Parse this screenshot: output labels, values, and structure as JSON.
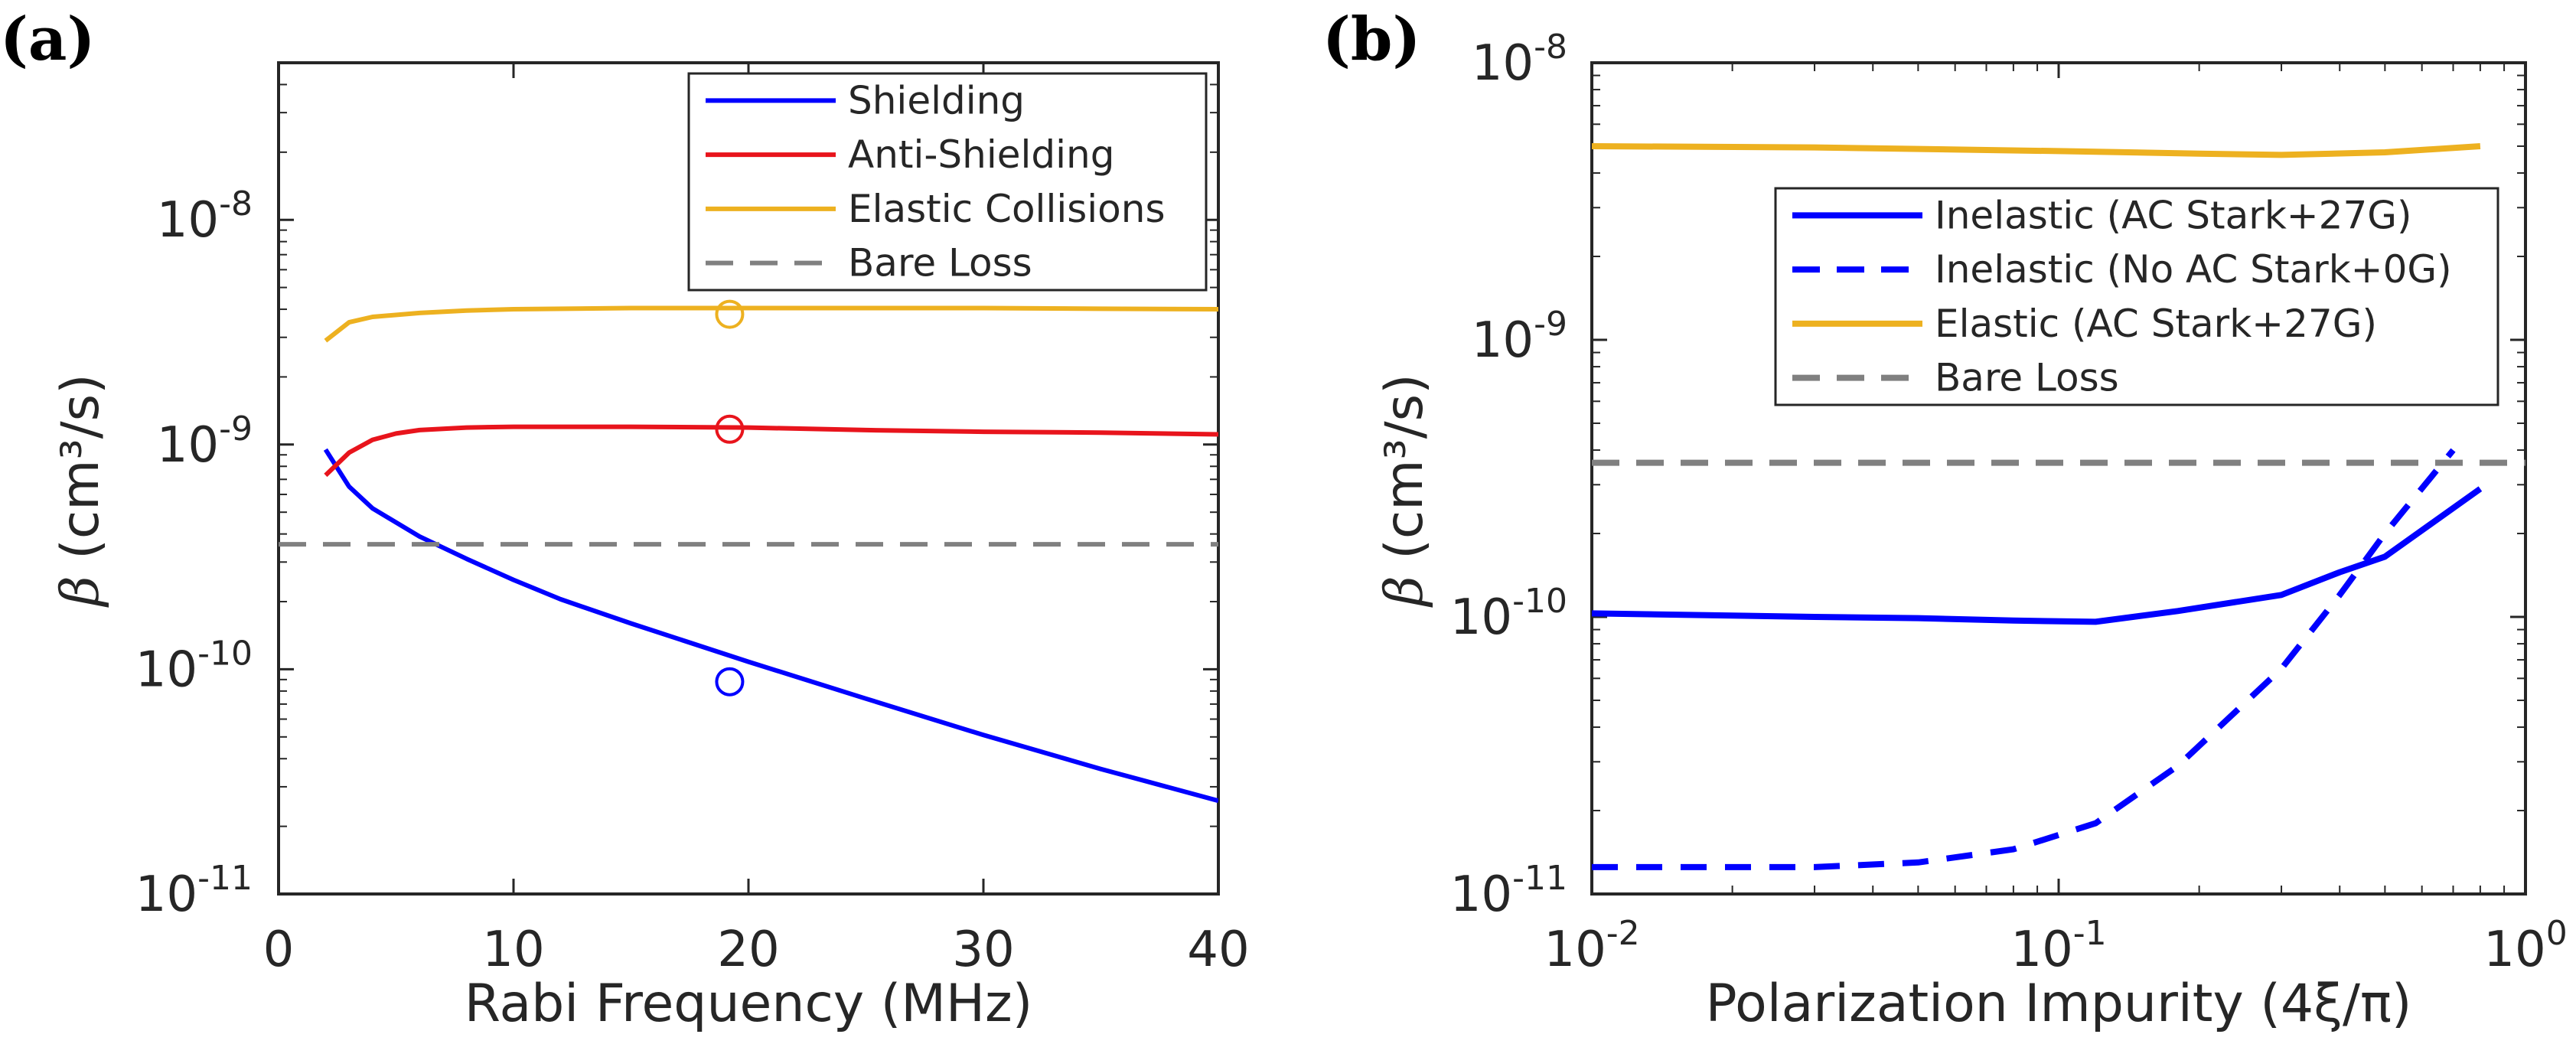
{
  "chart_data": [
    {
      "panel": "(a)",
      "type": "line",
      "title": "",
      "xlabel": "Rabi Frequency (MHz)",
      "ylabel": "(cm³/s)",
      "ylabel_symbol": "β",
      "xscale": "linear",
      "yscale": "log",
      "xlim": [
        0,
        40
      ],
      "ylim": [
        1e-11,
        5e-08
      ],
      "xticks": [
        {
          "value": 0,
          "label": "0"
        },
        {
          "value": 10,
          "label": "10"
        },
        {
          "value": 20,
          "label": "20"
        },
        {
          "value": 30,
          "label": "30"
        },
        {
          "value": 40,
          "label": "40"
        }
      ],
      "yticks": [
        {
          "value": 1e-11,
          "base": "10",
          "exp": "-11"
        },
        {
          "value": 1e-10,
          "base": "10",
          "exp": "-10"
        },
        {
          "value": 1e-09,
          "base": "10",
          "exp": "-9"
        },
        {
          "value": 1e-08,
          "base": "10",
          "exp": "-8"
        }
      ],
      "legend_position": "top-right",
      "series": [
        {
          "name": "Shielding",
          "color": "#0000ff",
          "dash": "solid",
          "x": [
            2,
            3,
            4,
            6,
            8,
            10,
            12,
            15,
            20,
            25,
            30,
            35,
            40
          ],
          "y": [
            9.5e-10,
            6.5e-10,
            5.2e-10,
            3.9e-10,
            3.1e-10,
            2.5e-10,
            2.05e-10,
            1.6e-10,
            1.08e-10,
            7.4e-11,
            5.1e-11,
            3.6e-11,
            2.6e-11
          ]
        },
        {
          "name": "Anti-Shielding",
          "color": "#e8141c",
          "dash": "solid",
          "x": [
            2,
            3,
            4,
            5,
            6,
            8,
            10,
            15,
            20,
            25,
            30,
            35,
            40
          ],
          "y": [
            7.3e-10,
            9.2e-10,
            1.05e-09,
            1.12e-09,
            1.16e-09,
            1.19e-09,
            1.2e-09,
            1.2e-09,
            1.19e-09,
            1.16e-09,
            1.14e-09,
            1.13e-09,
            1.11e-09
          ]
        },
        {
          "name": "Elastic Collisions",
          "color": "#edb120",
          "dash": "solid",
          "x": [
            2,
            3,
            4,
            6,
            8,
            10,
            15,
            20,
            25,
            30,
            35,
            40
          ],
          "y": [
            2.9e-09,
            3.5e-09,
            3.7e-09,
            3.85e-09,
            3.95e-09,
            4e-09,
            4.05e-09,
            4.05e-09,
            4.05e-09,
            4.05e-09,
            4.02e-09,
            4e-09
          ]
        },
        {
          "name": "Bare Loss",
          "color": "#808080",
          "dash": "dashed",
          "x": [
            0,
            40
          ],
          "y": [
            3.6e-10,
            3.6e-10
          ]
        }
      ],
      "points": [
        {
          "series": "Elastic Collisions",
          "x": 19.2,
          "y": 3.8e-09,
          "color": "#edb120"
        },
        {
          "series": "Anti-Shielding",
          "x": 19.2,
          "y": 1.17e-09,
          "color": "#e8141c"
        },
        {
          "series": "Shielding",
          "x": 19.2,
          "y": 8.8e-11,
          "color": "#0000ff"
        }
      ]
    },
    {
      "panel": "(b)",
      "type": "line",
      "title": "",
      "xlabel": "Polarization Impurity (4ξ/π)",
      "ylabel": "(cm³/s)",
      "ylabel_symbol": "β",
      "xscale": "log",
      "yscale": "log",
      "xlim": [
        0.01,
        1
      ],
      "ylim": [
        1e-11,
        1e-08
      ],
      "xticks": [
        {
          "value": 0.01,
          "base": "10",
          "exp": "-2"
        },
        {
          "value": 0.1,
          "base": "10",
          "exp": "-1"
        },
        {
          "value": 1,
          "base": "10",
          "exp": "0"
        }
      ],
      "yticks": [
        {
          "value": 1e-11,
          "base": "10",
          "exp": "-11"
        },
        {
          "value": 1e-10,
          "base": "10",
          "exp": "-10"
        },
        {
          "value": 1e-09,
          "base": "10",
          "exp": "-9"
        },
        {
          "value": 1e-08,
          "base": "10",
          "exp": "-8"
        }
      ],
      "legend_position": "right",
      "series": [
        {
          "name": "Inelastic (AC Stark+27G)",
          "color": "#0000ff",
          "dash": "solid",
          "x": [
            0.01,
            0.03,
            0.05,
            0.08,
            0.12,
            0.18,
            0.3,
            0.4,
            0.5,
            0.8
          ],
          "y": [
            1.03e-10,
            1e-10,
            9.9e-11,
            9.7e-11,
            9.6e-11,
            1.05e-10,
            1.2e-10,
            1.45e-10,
            1.65e-10,
            2.9e-10
          ]
        },
        {
          "name": "Inelastic (No AC Stark+0G)",
          "color": "#0000ff",
          "dash": "dashed",
          "x": [
            0.01,
            0.03,
            0.05,
            0.08,
            0.12,
            0.18,
            0.3,
            0.4,
            0.5,
            0.7
          ],
          "y": [
            1.25e-11,
            1.25e-11,
            1.3e-11,
            1.45e-11,
            1.8e-11,
            2.9e-11,
            6.5e-11,
            1.2e-10,
            2e-10,
            4e-10
          ]
        },
        {
          "name": "Elastic (AC Stark+27G)",
          "color": "#edb120",
          "dash": "solid",
          "x": [
            0.01,
            0.03,
            0.1,
            0.2,
            0.3,
            0.5,
            0.8
          ],
          "y": [
            5e-09,
            4.95e-09,
            4.8e-09,
            4.7e-09,
            4.65e-09,
            4.75e-09,
            5e-09
          ]
        },
        {
          "name": "Bare Loss",
          "color": "#808080",
          "dash": "dashed",
          "x": [
            0.01,
            1
          ],
          "y": [
            3.6e-10,
            3.6e-10
          ]
        }
      ]
    }
  ]
}
